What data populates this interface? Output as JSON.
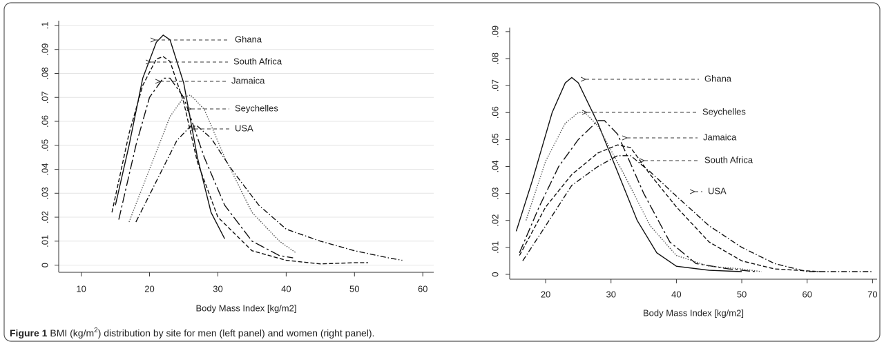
{
  "chart_data": [
    {
      "type": "line",
      "x_label": "Body Mass Index [kg/m2]",
      "grid": true,
      "xlim": [
        6.7,
        61.6
      ],
      "ylim": [
        -0.003,
        0.102
      ],
      "xticks": [
        10,
        20,
        30,
        40,
        50,
        60
      ],
      "yticks": [
        0,
        {
          "value": 0.01,
          "label": ".01"
        },
        {
          "value": 0.02,
          "label": ".02"
        },
        {
          "value": 0.03,
          "label": ".03"
        },
        {
          "value": 0.04,
          "label": ".04"
        },
        {
          "value": 0.05,
          "label": ".05"
        },
        {
          "value": 0.06,
          "label": ".06"
        },
        {
          "value": 0.07,
          "label": ".07"
        },
        {
          "value": 0.08,
          "label": ".08"
        },
        {
          "value": 0.09,
          "label": ".09"
        },
        {
          "value": 0.1,
          "label": ".1"
        }
      ],
      "series": [
        {
          "name": "Ghana",
          "color": "#111111",
          "dash": "solid",
          "x": [
            15,
            17,
            19,
            21,
            22,
            23,
            25,
            27,
            29,
            31
          ],
          "values": [
            0.025,
            0.05,
            0.078,
            0.093,
            0.096,
            0.094,
            0.076,
            0.045,
            0.022,
            0.011
          ]
        },
        {
          "name": "South Africa",
          "color": "#111111",
          "dash": "dashed",
          "x": [
            14.5,
            17,
            19,
            21,
            22,
            23,
            25,
            27,
            30,
            35,
            40,
            45,
            50,
            52
          ],
          "values": [
            0.022,
            0.055,
            0.075,
            0.086,
            0.087,
            0.085,
            0.068,
            0.043,
            0.02,
            0.006,
            0.002,
            0.0005,
            0.001,
            0.001
          ]
        },
        {
          "name": "Jamaica",
          "color": "#111111",
          "dash": "longdash",
          "x": [
            15.5,
            18,
            20,
            22,
            23,
            25,
            28,
            31,
            35,
            39,
            41
          ],
          "values": [
            0.019,
            0.05,
            0.07,
            0.078,
            0.078,
            0.07,
            0.045,
            0.025,
            0.01,
            0.004,
            0.003
          ]
        },
        {
          "name": "Seychelles",
          "color": "#555555",
          "dash": "dotted",
          "x": [
            17,
            20,
            23,
            25,
            26,
            28,
            31,
            35,
            39,
            41.5
          ],
          "values": [
            0.018,
            0.04,
            0.062,
            0.07,
            0.071,
            0.065,
            0.045,
            0.022,
            0.01,
            0.005
          ]
        },
        {
          "name": "USA",
          "color": "#111111",
          "dash": "dashdot",
          "x": [
            18,
            21,
            24,
            26,
            27,
            29,
            32,
            36,
            40,
            45,
            50,
            55,
            57
          ],
          "values": [
            0.018,
            0.035,
            0.052,
            0.058,
            0.058,
            0.053,
            0.04,
            0.025,
            0.015,
            0.01,
            0.006,
            0.003,
            0.002
          ]
        }
      ]
    },
    {
      "type": "line",
      "x_label": "Body Mass Index [kg/m2]",
      "grid": false,
      "xlim": [
        14.5,
        70.7
      ],
      "ylim": [
        -0.0018,
        0.0915
      ],
      "xticks": [
        20,
        30,
        40,
        50,
        60,
        70
      ],
      "yticks": [
        0,
        {
          "value": 0.01,
          "label": ".01"
        },
        {
          "value": 0.02,
          "label": ".02"
        },
        {
          "value": 0.03,
          "label": ".03"
        },
        {
          "value": 0.04,
          "label": ".04"
        },
        {
          "value": 0.05,
          "label": ".05"
        },
        {
          "value": 0.06,
          "label": ".06"
        },
        {
          "value": 0.07,
          "label": ".07"
        },
        {
          "value": 0.08,
          "label": ".08"
        },
        {
          "value": 0.09,
          "label": ".09"
        }
      ],
      "series": [
        {
          "name": "Ghana",
          "color": "#111111",
          "dash": "solid",
          "x": [
            15.5,
            18,
            21,
            23,
            24,
            25,
            28,
            31,
            34,
            37,
            40,
            45,
            50
          ],
          "values": [
            0.016,
            0.035,
            0.06,
            0.071,
            0.073,
            0.071,
            0.056,
            0.038,
            0.02,
            0.008,
            0.003,
            0.0015,
            0.001
          ]
        },
        {
          "name": "South Africa",
          "color": "#111111",
          "dash": "dashed",
          "x": [
            16,
            20,
            24,
            28,
            31,
            33,
            36,
            40,
            45,
            50,
            55,
            62
          ],
          "values": [
            0.007,
            0.025,
            0.037,
            0.045,
            0.048,
            0.047,
            0.037,
            0.025,
            0.012,
            0.005,
            0.002,
            0.001
          ]
        },
        {
          "name": "Jamaica",
          "color": "#111111",
          "dash": "longdash",
          "x": [
            16,
            19,
            22,
            25,
            28,
            29,
            31,
            35,
            39,
            43,
            48,
            52
          ],
          "values": [
            0.008,
            0.025,
            0.04,
            0.05,
            0.057,
            0.057,
            0.052,
            0.03,
            0.012,
            0.004,
            0.002,
            0.001
          ]
        },
        {
          "name": "Seychelles",
          "color": "#555555",
          "dash": "dotted",
          "x": [
            17,
            20,
            23,
            25,
            26,
            28,
            32,
            36,
            40,
            45,
            50,
            53
          ],
          "values": [
            0.02,
            0.042,
            0.056,
            0.06,
            0.06,
            0.055,
            0.037,
            0.018,
            0.007,
            0.003,
            0.002,
            0.001
          ]
        },
        {
          "name": "USA",
          "color": "#111111",
          "dash": "dashdot",
          "x": [
            16.5,
            20,
            24,
            28,
            31,
            33,
            36,
            40,
            45,
            50,
            55,
            60,
            70
          ],
          "values": [
            0.005,
            0.018,
            0.033,
            0.04,
            0.044,
            0.044,
            0.038,
            0.029,
            0.018,
            0.01,
            0.004,
            0.001,
            0.001
          ]
        }
      ]
    }
  ],
  "caption": {
    "label": "Figure 1",
    "text_before": "BMI (kg/m",
    "sup": "2",
    "text_after": ") distribution by site for men (left panel) and women (right panel)."
  }
}
